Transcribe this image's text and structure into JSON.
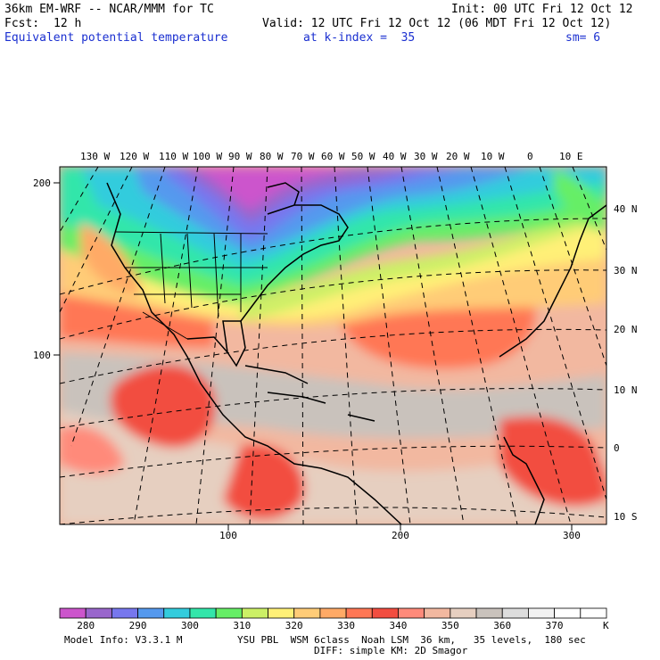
{
  "header": {
    "model_title": "36km EM-WRF -- NCAR/MMM for TC",
    "init": "Init: 00 UTC Fri 12 Oct 12",
    "fcst_label": "Fcst:",
    "fcst_hours": "12 h",
    "valid": "Valid: 12 UTC Fri 12 Oct 12 (06 MDT Fri 12 Oct 12)",
    "field_name": "Equivalent potential temperature",
    "level": "at k-index =  35",
    "smoothing": "sm= 6"
  },
  "map": {
    "top_longitude_labels": [
      "130 W",
      "120 W",
      "110 W",
      "100 W",
      "90 W",
      "80 W",
      "70 W",
      "60 W",
      "50 W",
      "40 W",
      "30 W",
      "20 W",
      "10 W",
      "0",
      "10 E"
    ],
    "right_latitude_labels": [
      "40 N",
      "30 N",
      "20 N",
      "10 N",
      "0",
      "10 S"
    ],
    "left_grid_labels": [
      "200",
      "100"
    ],
    "bottom_grid_labels": [
      "100",
      "200",
      "300"
    ]
  },
  "colorbar": {
    "tick_labels": [
      "280",
      "290",
      "300",
      "310",
      "320",
      "330",
      "340",
      "350",
      "360",
      "370"
    ],
    "unit": "K",
    "colors": [
      "#cc55cc",
      "#9966cc",
      "#7777ee",
      "#5599ee",
      "#33ccdd",
      "#33e6aa",
      "#66ee66",
      "#ccf066",
      "#fff077",
      "#ffcc77",
      "#ffaa66",
      "#ff7755",
      "#f24d40",
      "#ff8a7a",
      "#f2b8a0",
      "#e6cfc0",
      "#c9c2bc",
      "#dddddd",
      "#f2f2f2",
      "#ffffff",
      "#ffffff"
    ]
  },
  "footer": {
    "model_info": "Model Info: V3.3.1 M",
    "physics": "YSU PBL  WSM 6class  Noah LSM  36 km,   35 levels,  180 sec",
    "diffusion": "DIFF: simple KM: 2D Smagor"
  }
}
